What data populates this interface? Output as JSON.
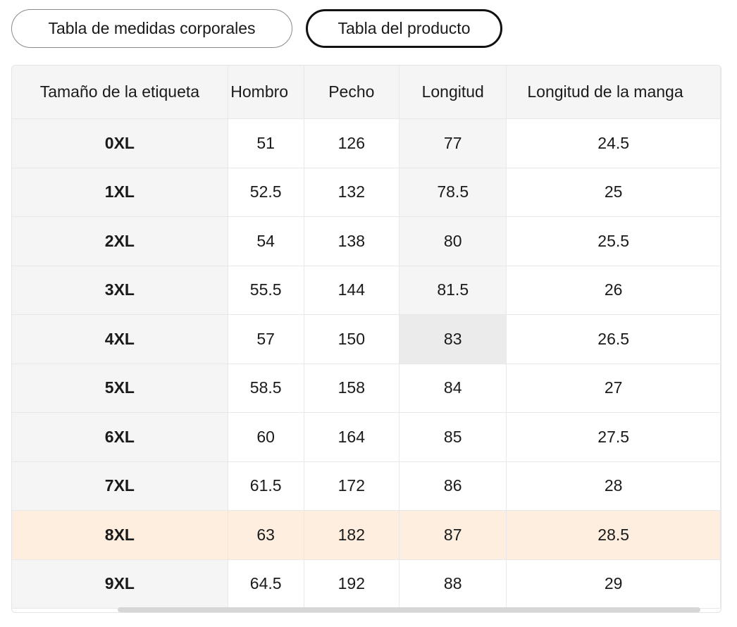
{
  "tabs": {
    "body_measurements": "Tabla de medidas corporales",
    "product_measurements": "Tabla del producto"
  },
  "table": {
    "headers": [
      "Tamaño de la etiqueta",
      "Hombro",
      "Pecho",
      "Longitud",
      "Longitud de la manga"
    ],
    "rows": [
      [
        "0XL",
        "51",
        "126",
        "77",
        "24.5"
      ],
      [
        "1XL",
        "52.5",
        "132",
        "78.5",
        "25"
      ],
      [
        "2XL",
        "54",
        "138",
        "80",
        "25.5"
      ],
      [
        "3XL",
        "55.5",
        "144",
        "81.5",
        "26"
      ],
      [
        "4XL",
        "57",
        "150",
        "83",
        "26.5"
      ],
      [
        "5XL",
        "58.5",
        "158",
        "84",
        "27"
      ],
      [
        "6XL",
        "60",
        "164",
        "85",
        "27.5"
      ],
      [
        "7XL",
        "61.5",
        "172",
        "86",
        "28"
      ],
      [
        "8XL",
        "63",
        "182",
        "87",
        "28.5"
      ],
      [
        "9XL",
        "64.5",
        "192",
        "88",
        "29"
      ]
    ]
  },
  "colors": {
    "highlight_row": "#fdeedf",
    "header_bg": "#f5f5f5",
    "active_tab_border": "#111111"
  }
}
